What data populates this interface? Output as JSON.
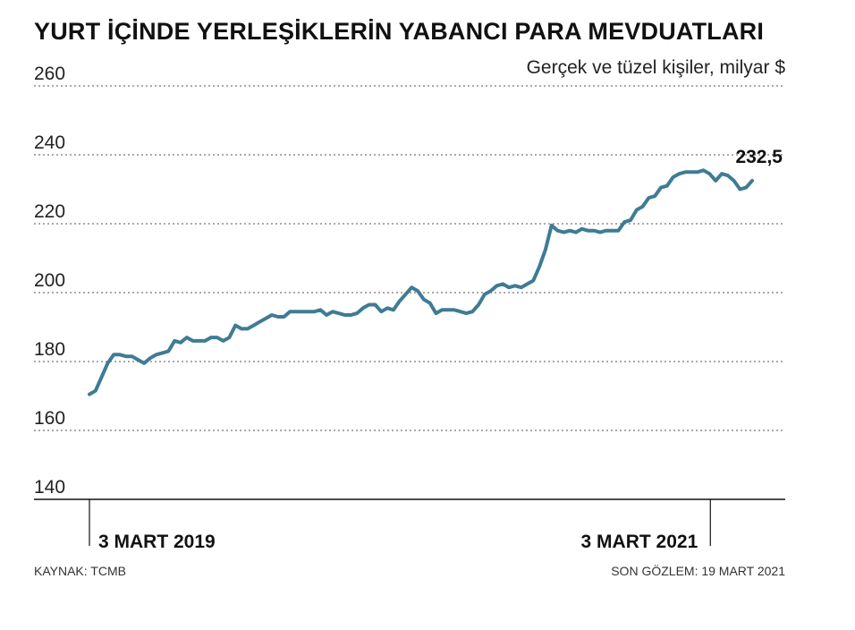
{
  "header": {
    "title": "YURT İÇİNDE YERLEŞİKLERİN YABANCI PARA MEVDUATLARI",
    "subtitle": "Gerçek ve tüzel kişiler, milyar $"
  },
  "footer": {
    "source": "KAYNAK: TCMB",
    "last_observation": "SON GÖZLEM: 19 MART 2021"
  },
  "chart_data": {
    "type": "line",
    "title": "YURT İÇİNDE YERLEŞİKLERİN YABANCI PARA MEVDUATLARI",
    "subtitle": "Gerçek ve tüzel kişiler, milyar $",
    "xlabel": "",
    "ylabel": "",
    "ylim": [
      140,
      260
    ],
    "yticks": [
      140,
      160,
      180,
      200,
      220,
      240,
      260
    ],
    "ytick_labels": [
      "140",
      "160",
      "180",
      "200",
      "220",
      "240",
      "260"
    ],
    "grid": true,
    "line_color": "#3f7b94",
    "x_range_weeks": [
      0,
      111
    ],
    "x_tick_positions_weeks": [
      0,
      104
    ],
    "x_tick_labels": [
      "3 MART 2019",
      "3 MART 2021"
    ],
    "end_label": "232,5",
    "series": [
      {
        "values": [
          170.5,
          171.5,
          175.5,
          179.5,
          182.0,
          182.0,
          181.5,
          181.5,
          180.5,
          179.5,
          181.0,
          182.0,
          182.5,
          183.0,
          186.0,
          185.5,
          187.0,
          186.0,
          186.0,
          186.0,
          187.0,
          187.0,
          186.0,
          187.0,
          190.5,
          189.5,
          189.5,
          190.5,
          191.5,
          192.5,
          193.5,
          193.0,
          193.0,
          194.5,
          194.5,
          194.5,
          194.5,
          194.5,
          195.0,
          193.5,
          194.5,
          194.0,
          193.5,
          193.5,
          194.0,
          195.5,
          196.5,
          196.5,
          194.5,
          195.5,
          195.0,
          197.5,
          199.5,
          201.5,
          200.5,
          198.0,
          197.0,
          194.0,
          195.0,
          195.0,
          195.0,
          194.5,
          194.0,
          194.5,
          196.5,
          199.5,
          200.5,
          202.0,
          202.5,
          201.5,
          202.0,
          201.5,
          202.5,
          203.5,
          207.5,
          212.5,
          219.5,
          218.0,
          217.5,
          218.0,
          217.5,
          218.5,
          218.0,
          218.0,
          217.5,
          218.0,
          218.0,
          218.0,
          220.5,
          221.0,
          224.0,
          225.0,
          227.5,
          228.0,
          230.5,
          231.0,
          233.5,
          234.5,
          235.0,
          235.0,
          235.0,
          235.5,
          234.5,
          232.5,
          234.5,
          234.0,
          232.5,
          230.0,
          230.5,
          232.5
        ]
      }
    ]
  }
}
